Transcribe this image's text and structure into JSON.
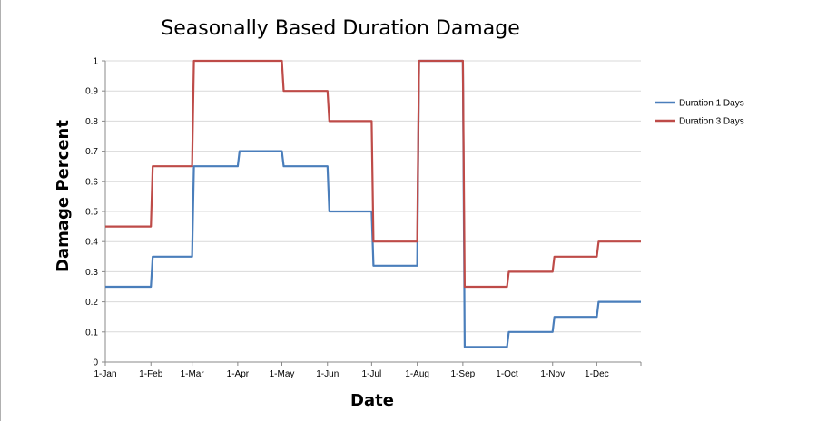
{
  "chart_data": {
    "type": "line",
    "title": "Seasonally Based Duration Damage",
    "xlabel": "Date",
    "ylabel": "Damage Percent",
    "x_tick_labels": [
      "1-Jan",
      "1-Feb",
      "1-Mar",
      "1-Apr",
      "1-May",
      "1-Jun",
      "1-Jul",
      "1-Aug",
      "1-Sep",
      "1-Oct",
      "1-Nov",
      "1-Dec"
    ],
    "y_tick_labels": [
      "0",
      "0.1",
      "0.2",
      "0.3",
      "0.4",
      "0.5",
      "0.6",
      "0.7",
      "0.8",
      "0.9",
      "1"
    ],
    "ylim": [
      0,
      1
    ],
    "xlim": [
      "1-Jan",
      "31-Dec"
    ],
    "grid": "horizontal",
    "legend_position": "right",
    "step": true,
    "series": [
      {
        "name": "Duration 1 Days",
        "color": "#4a7ebb",
        "x": [
          "1-Jan",
          "1-Feb",
          "1-Mar",
          "1-Apr",
          "1-May",
          "1-Jun",
          "1-Jul",
          "1-Aug",
          "1-Sep",
          "1-Oct",
          "1-Nov",
          "1-Dec",
          "31-Dec"
        ],
        "values": [
          0.25,
          0.35,
          0.65,
          0.7,
          0.65,
          0.5,
          0.32,
          1.0,
          0.05,
          0.1,
          0.15,
          0.2,
          0.2
        ]
      },
      {
        "name": "Duration 3 Days",
        "color": "#be4b48",
        "x": [
          "1-Jan",
          "1-Feb",
          "1-Mar",
          "1-Apr",
          "1-May",
          "1-Jun",
          "1-Jul",
          "1-Aug",
          "1-Sep",
          "1-Oct",
          "1-Nov",
          "1-Dec",
          "31-Dec"
        ],
        "values": [
          0.45,
          0.65,
          1.0,
          1.0,
          0.9,
          0.8,
          0.4,
          1.0,
          0.25,
          0.3,
          0.35,
          0.4,
          0.4
        ]
      }
    ]
  }
}
